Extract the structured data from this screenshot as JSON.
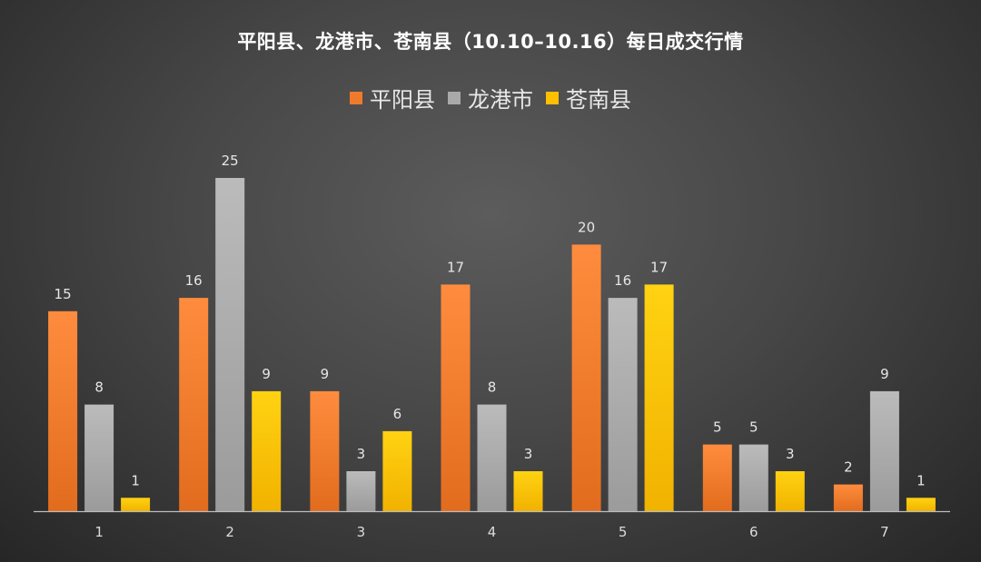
{
  "chart_data": {
    "type": "bar",
    "title": "平阳县、龙港市、苍南县（10.10–10.16）每日成交行情",
    "xlabel": "",
    "ylabel": "",
    "categories": [
      "1",
      "2",
      "3",
      "4",
      "5",
      "6",
      "7"
    ],
    "series": [
      {
        "name": "平阳县",
        "values": [
          15,
          16,
          9,
          17,
          20,
          5,
          2
        ],
        "color": "#f07a2c"
      },
      {
        "name": "龙港市",
        "values": [
          8,
          25,
          3,
          8,
          16,
          5,
          9
        ],
        "color": "#a9a9a9"
      },
      {
        "name": "苍南县",
        "values": [
          1,
          9,
          6,
          3,
          17,
          3,
          1
        ],
        "color": "#ffc000"
      }
    ],
    "ylim": [
      0,
      25
    ],
    "grid": false,
    "data_labels": true,
    "legend_position": "top"
  }
}
